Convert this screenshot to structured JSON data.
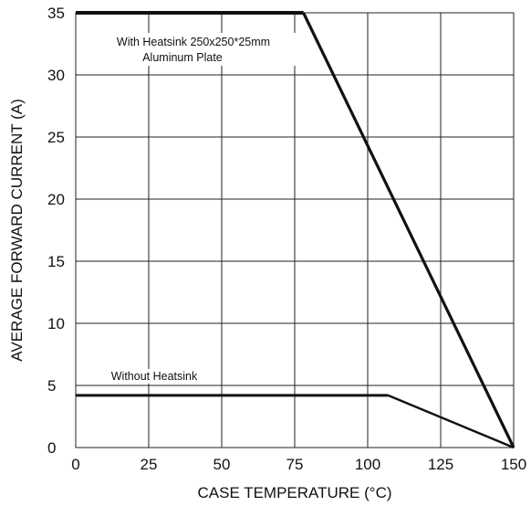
{
  "chart_data": {
    "type": "line",
    "title": "",
    "xlabel": "CASE TEMPERATURE (°C)",
    "ylabel": "AVERAGE FORWARD CURRENT (A)",
    "xlim": [
      0,
      150
    ],
    "ylim": [
      0,
      35
    ],
    "x_ticks": [
      "0",
      "25",
      "50",
      "75",
      "100",
      "125",
      "150"
    ],
    "y_ticks": [
      "0",
      "5",
      "10",
      "15",
      "20",
      "25",
      "30",
      "35"
    ],
    "grid": true,
    "series": [
      {
        "x": [
          0,
          78,
          150
        ],
        "y": [
          35,
          35,
          0
        ],
        "color": "#111111"
      },
      {
        "x": [
          0,
          107,
          150
        ],
        "y": [
          4.2,
          4.2,
          0
        ],
        "color": "#111111"
      }
    ],
    "annotations": [
      {
        "text": "With Heatsink 250x250*25mm"
      },
      {
        "text": "Aluminum Plate"
      },
      {
        "text": "Without Heatsink"
      }
    ]
  }
}
